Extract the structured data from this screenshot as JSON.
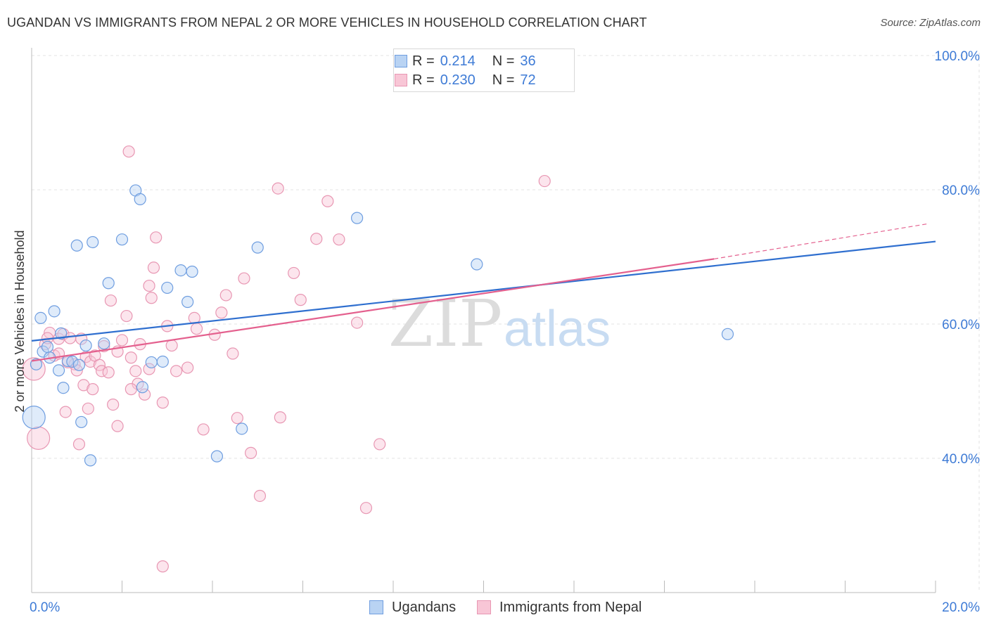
{
  "title": "UGANDAN VS IMMIGRANTS FROM NEPAL 2 OR MORE VEHICLES IN HOUSEHOLD CORRELATION CHART",
  "source": "Source: ZipAtlas.com",
  "watermark": {
    "zip": "ZIP",
    "atlas": "atlas"
  },
  "legend": {
    "rows": [
      {
        "r_label": "R =",
        "r_value": "0.214",
        "n_label": "N =",
        "n_value": "36"
      },
      {
        "r_label": "R =",
        "r_value": "0.230",
        "n_label": "N =",
        "n_value": "72"
      }
    ]
  },
  "bottom_legend": {
    "ugandans": "Ugandans",
    "nepal": "Immigrants from Nepal"
  },
  "colors": {
    "ugandans_fill": "#b9d3f3",
    "ugandans_stroke": "#6f9ee0",
    "ugandans_line": "#2f6fcf",
    "nepal_fill": "#f8c6d6",
    "nepal_stroke": "#e897b3",
    "nepal_line": "#e4608e",
    "tick_label": "#3e7bd6",
    "grid": "#e3e3e3"
  },
  "chart_data": {
    "type": "scatter",
    "title": "UGANDAN VS IMMIGRANTS FROM NEPAL 2 OR MORE VEHICLES IN HOUSEHOLD CORRELATION CHART",
    "xlabel": "",
    "ylabel": "2 or more Vehicles in Household",
    "xlim": [
      0,
      20
    ],
    "ylim": [
      20,
      103
    ],
    "x_tick_labels": [
      "0.0%",
      "20.0%"
    ],
    "y_ticks": [
      40,
      60,
      80,
      100
    ],
    "y_tick_labels": [
      "40.0%",
      "60.0%",
      "80.0%",
      "100.0%"
    ],
    "grid": true,
    "legend_position": "top-center",
    "series": [
      {
        "name": "Ugandans",
        "R": 0.214,
        "N": 36,
        "trend": {
          "x": [
            0,
            20
          ],
          "y": [
            57.5,
            72.3
          ]
        },
        "points": [
          [
            0.05,
            46.1,
            "big"
          ],
          [
            0.1,
            54.0
          ],
          [
            0.2,
            60.9
          ],
          [
            0.25,
            55.9
          ],
          [
            0.35,
            56.6
          ],
          [
            0.4,
            55.0
          ],
          [
            0.5,
            61.9
          ],
          [
            0.6,
            53.1
          ],
          [
            0.65,
            58.6
          ],
          [
            0.7,
            50.5
          ],
          [
            0.8,
            54.5
          ],
          [
            0.9,
            54.4
          ],
          [
            1.0,
            71.7
          ],
          [
            1.05,
            53.9
          ],
          [
            1.1,
            45.4
          ],
          [
            1.2,
            56.8
          ],
          [
            1.3,
            39.7
          ],
          [
            1.35,
            72.2
          ],
          [
            1.6,
            57.1
          ],
          [
            1.7,
            66.1
          ],
          [
            2.0,
            72.6
          ],
          [
            2.3,
            79.9
          ],
          [
            2.4,
            78.6
          ],
          [
            2.45,
            50.6
          ],
          [
            2.65,
            54.3
          ],
          [
            2.9,
            54.4
          ],
          [
            3.0,
            65.4
          ],
          [
            3.3,
            68.0
          ],
          [
            3.45,
            63.3
          ],
          [
            3.55,
            67.8
          ],
          [
            4.1,
            40.3
          ],
          [
            4.65,
            44.4
          ],
          [
            5.0,
            71.4
          ],
          [
            7.2,
            75.8
          ],
          [
            9.85,
            68.9
          ],
          [
            15.4,
            58.5
          ]
        ]
      },
      {
        "name": "Immigrants from Nepal",
        "R": 0.23,
        "N": 72,
        "trend": {
          "x": [
            0,
            15.1
          ],
          "y": [
            54.5,
            69.7
          ]
        },
        "trend_dashed": {
          "x": [
            15.1,
            19.8
          ],
          "y": [
            69.7,
            74.9
          ]
        },
        "points": [
          [
            0.05,
            53.3,
            "big"
          ],
          [
            0.15,
            43.0,
            "big"
          ],
          [
            0.3,
            57.0
          ],
          [
            0.4,
            58.7
          ],
          [
            0.5,
            55.3
          ],
          [
            0.6,
            57.8
          ],
          [
            0.7,
            58.5
          ],
          [
            0.75,
            46.9
          ],
          [
            0.8,
            54.3
          ],
          [
            0.85,
            57.9
          ],
          [
            0.95,
            54.0
          ],
          [
            1.0,
            53.1
          ],
          [
            1.05,
            42.1
          ],
          [
            1.15,
            50.9
          ],
          [
            1.2,
            55.1
          ],
          [
            1.25,
            47.4
          ],
          [
            1.3,
            54.4
          ],
          [
            1.35,
            50.3
          ],
          [
            1.4,
            55.3
          ],
          [
            1.5,
            53.9
          ],
          [
            1.55,
            53.0
          ],
          [
            1.6,
            56.7
          ],
          [
            1.7,
            52.8
          ],
          [
            1.75,
            63.5
          ],
          [
            1.8,
            48.0
          ],
          [
            1.9,
            55.9
          ],
          [
            2.0,
            57.6
          ],
          [
            2.1,
            61.2
          ],
          [
            2.15,
            85.7
          ],
          [
            2.2,
            55.0
          ],
          [
            2.3,
            53.0
          ],
          [
            2.35,
            51.1
          ],
          [
            2.4,
            57.0
          ],
          [
            2.5,
            49.5
          ],
          [
            2.6,
            65.7
          ],
          [
            2.65,
            63.9
          ],
          [
            2.7,
            68.4
          ],
          [
            2.75,
            72.9
          ],
          [
            2.9,
            48.3
          ],
          [
            2.9,
            23.9
          ],
          [
            3.0,
            59.7
          ],
          [
            3.1,
            56.8
          ],
          [
            3.2,
            53.0
          ],
          [
            3.45,
            53.5
          ],
          [
            3.6,
            60.9
          ],
          [
            3.65,
            59.3
          ],
          [
            3.8,
            44.3
          ],
          [
            4.05,
            58.4
          ],
          [
            4.2,
            61.7
          ],
          [
            4.3,
            64.3
          ],
          [
            4.45,
            55.6
          ],
          [
            4.55,
            46.0
          ],
          [
            4.7,
            66.8
          ],
          [
            4.85,
            40.8
          ],
          [
            5.05,
            34.4
          ],
          [
            5.45,
            80.2
          ],
          [
            5.5,
            46.1
          ],
          [
            5.8,
            67.6
          ],
          [
            5.95,
            63.6
          ],
          [
            6.3,
            72.7
          ],
          [
            6.55,
            78.3
          ],
          [
            6.8,
            72.6
          ],
          [
            7.2,
            60.2
          ],
          [
            7.4,
            32.6
          ],
          [
            7.7,
            42.1
          ],
          [
            11.35,
            81.3
          ],
          [
            2.6,
            53.3
          ],
          [
            1.9,
            44.8
          ],
          [
            0.6,
            55.6
          ],
          [
            1.1,
            57.8
          ],
          [
            2.2,
            50.3
          ],
          [
            0.35,
            57.9
          ]
        ]
      }
    ]
  }
}
